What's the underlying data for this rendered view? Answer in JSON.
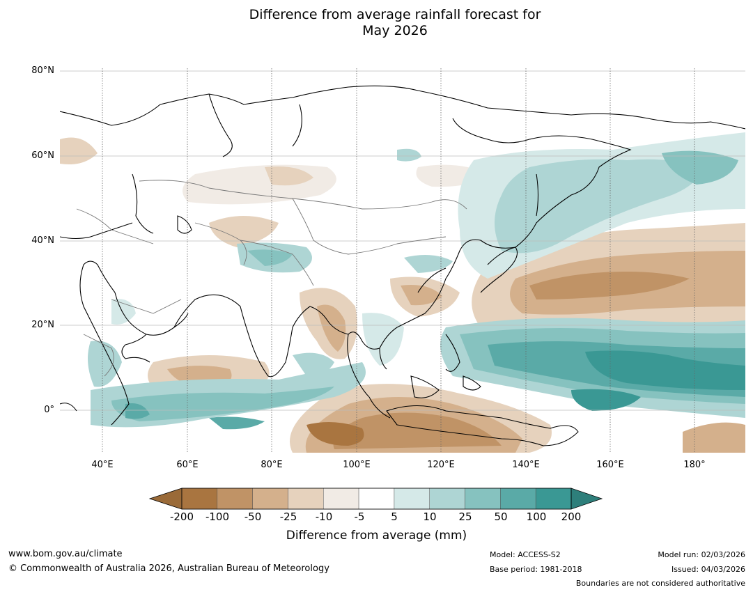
{
  "title_line1": "Difference from average rainfall forecast for",
  "title_line2": "May 2026",
  "latitudes": [
    "80°N",
    "60°N",
    "40°N",
    "20°N",
    "0°"
  ],
  "longitudes": [
    "40°E",
    "60°E",
    "80°E",
    "100°E",
    "120°E",
    "140°E",
    "160°E",
    "180°"
  ],
  "colorbar": {
    "ticks": [
      "-200",
      "-100",
      "-50",
      "-25",
      "-10",
      "-5",
      "5",
      "10",
      "25",
      "50",
      "100",
      "200"
    ],
    "colors": [
      "#a97540",
      "#c09366",
      "#d4b08c",
      "#e6d2bd",
      "#f1ebe5",
      "#ffffff",
      "#d5e9e8",
      "#aed5d4",
      "#86c2bf",
      "#5aaaa7",
      "#3a9894"
    ],
    "under_color": "#9a6a38",
    "over_color": "#2e7f7b",
    "label": "Difference from average (mm)"
  },
  "footer": {
    "website": "www.bom.gov.au/climate",
    "copyright": "© Commonwealth of Australia 2026, Australian Bureau of Meteorology",
    "model": "Model: ACCESS-S2",
    "base_period": "Base period: 1981-2018",
    "model_run": "Model run: 02/03/2026",
    "issued": "Issued: 04/03/2026",
    "boundaries": "Boundaries are not considered authoritative"
  }
}
